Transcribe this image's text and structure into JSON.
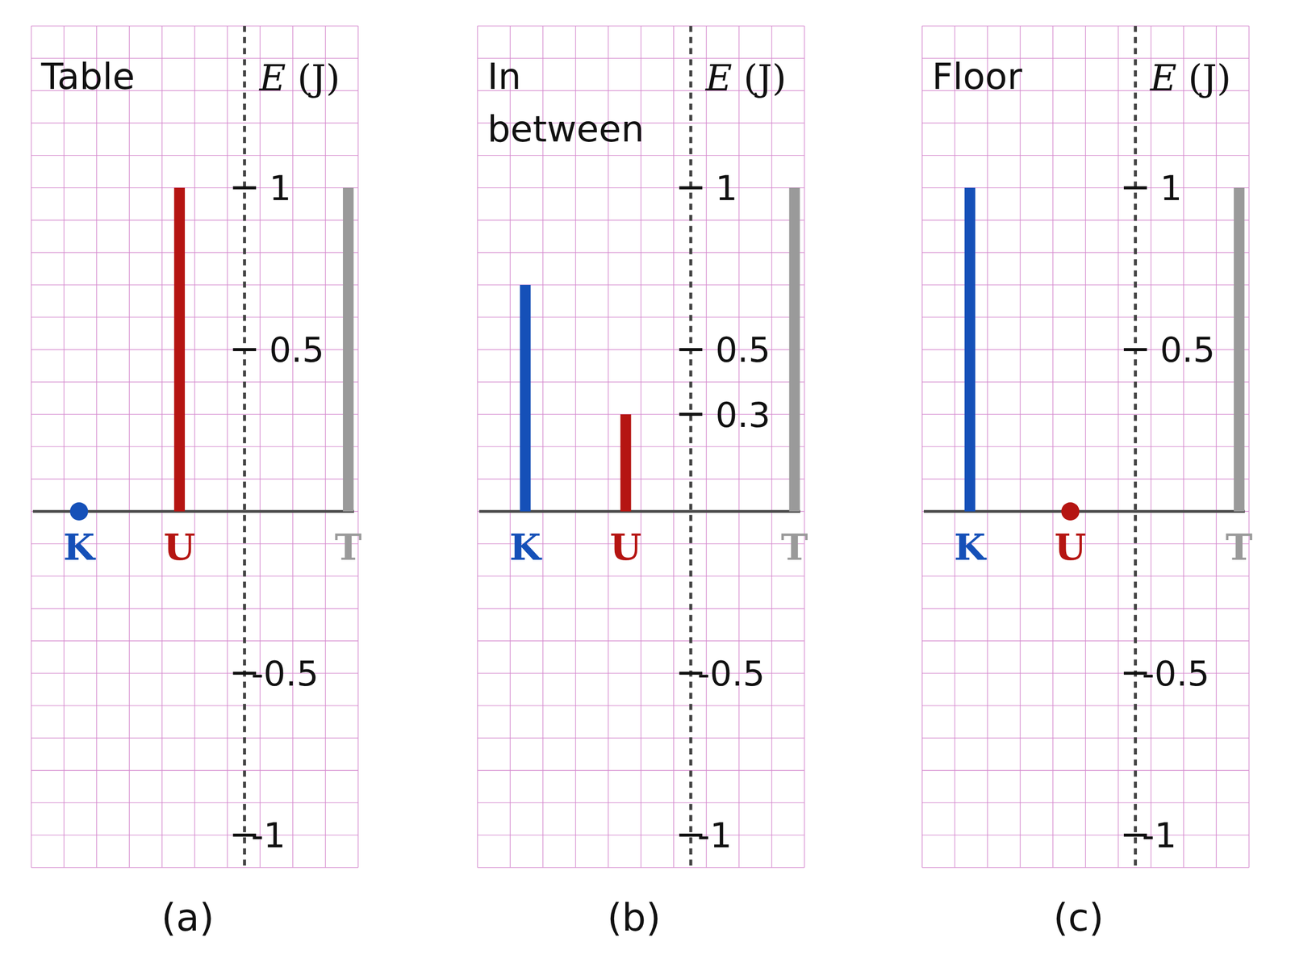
{
  "chart_data": [
    {
      "type": "bar",
      "title": "Table",
      "caption": "(a)",
      "y_label": "E (J)",
      "categories": [
        "K",
        "U",
        "T"
      ],
      "values": [
        0,
        1,
        1
      ],
      "colors": [
        "#1550b8",
        "#b51512",
        "#9a9a9a"
      ],
      "ylim": [
        -1.1,
        1.5
      ],
      "yticks": [
        -1,
        -0.5,
        0.5,
        1
      ],
      "grid": true
    },
    {
      "type": "bar",
      "title": "In between",
      "caption": "(b)",
      "y_label": "E (J)",
      "categories": [
        "K",
        "U",
        "T"
      ],
      "values": [
        0.7,
        0.3,
        1
      ],
      "colors": [
        "#1550b8",
        "#b51512",
        "#9a9a9a"
      ],
      "ylim": [
        -1.1,
        1.5
      ],
      "yticks": [
        -1,
        -0.5,
        0.3,
        0.5,
        1
      ],
      "grid": true
    },
    {
      "type": "bar",
      "title": "Floor",
      "caption": "(c)",
      "y_label": "E (J)",
      "categories": [
        "K",
        "U",
        "T"
      ],
      "values": [
        1,
        0,
        1
      ],
      "colors": [
        "#1550b8",
        "#b51512",
        "#9a9a9a"
      ],
      "ylim": [
        -1.1,
        1.5
      ],
      "yticks": [
        -1,
        -0.5,
        0.5,
        1
      ],
      "grid": true
    }
  ]
}
